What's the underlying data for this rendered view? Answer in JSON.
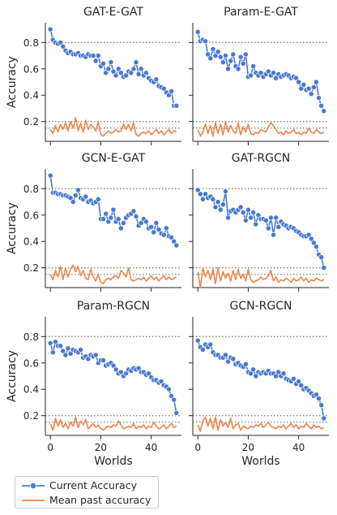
{
  "chart_data": {
    "type": "line",
    "shared_ylabel": "Accuracy",
    "shared_xlabel": "Worlds",
    "xlim": [
      -2,
      52
    ],
    "ylim": [
      0.05,
      0.95
    ],
    "xticks": [
      0,
      20,
      40
    ],
    "yticks": [
      0.2,
      0.4,
      0.6,
      0.8
    ],
    "reference_lines": [
      0.8,
      0.2,
      0.15
    ],
    "grid": false,
    "legend_placement": "bottom-left, below plots",
    "colors": {
      "current": "#4878d0",
      "mean": "#ee854a",
      "reference": "#7f7f7f"
    },
    "legend": [
      "Current Accuracy",
      "Mean past accuracy"
    ],
    "panels": [
      {
        "title": "GAT-E-GAT",
        "current": [
          0.9,
          0.82,
          0.8,
          0.79,
          0.8,
          0.77,
          0.74,
          0.72,
          0.73,
          0.71,
          0.71,
          0.72,
          0.7,
          0.7,
          0.69,
          0.71,
          0.7,
          0.7,
          0.66,
          0.7,
          0.62,
          0.64,
          0.57,
          0.6,
          0.65,
          0.58,
          0.55,
          0.6,
          0.57,
          0.54,
          0.55,
          0.58,
          0.57,
          0.6,
          0.65,
          0.56,
          0.6,
          0.55,
          0.57,
          0.53,
          0.51,
          0.5,
          0.52,
          0.47,
          0.46,
          0.45,
          0.42,
          0.4,
          0.43,
          0.32,
          0.32
        ],
        "mean": [
          0.14,
          0.11,
          0.17,
          0.12,
          0.18,
          0.14,
          0.19,
          0.13,
          0.2,
          0.15,
          0.23,
          0.13,
          0.19,
          0.12,
          0.21,
          0.14,
          0.18,
          0.16,
          0.13,
          0.2,
          0.1,
          0.09,
          0.11,
          0.13,
          0.11,
          0.12,
          0.14,
          0.12,
          0.13,
          0.18,
          0.14,
          0.18,
          0.13,
          0.19,
          0.1,
          0.09,
          0.11,
          0.12,
          0.11,
          0.13,
          0.1,
          0.12,
          0.14,
          0.11,
          0.13,
          0.1,
          0.12,
          0.14,
          0.11,
          0.13,
          0.12
        ]
      },
      {
        "title": "Param-E-GAT",
        "current": [
          0.88,
          0.81,
          0.82,
          0.81,
          0.71,
          0.68,
          0.75,
          0.7,
          0.73,
          0.69,
          0.65,
          0.7,
          0.6,
          0.66,
          0.71,
          0.62,
          0.6,
          0.69,
          0.64,
          0.71,
          0.54,
          0.55,
          0.62,
          0.57,
          0.55,
          0.57,
          0.54,
          0.56,
          0.58,
          0.55,
          0.57,
          0.53,
          0.56,
          0.54,
          0.55,
          0.56,
          0.55,
          0.53,
          0.54,
          0.53,
          0.5,
          0.45,
          0.48,
          0.44,
          0.45,
          0.41,
          0.46,
          0.5,
          0.38,
          0.32,
          0.28
        ],
        "mean": [
          0.14,
          0.09,
          0.12,
          0.18,
          0.11,
          0.17,
          0.09,
          0.19,
          0.11,
          0.18,
          0.1,
          0.2,
          0.12,
          0.17,
          0.13,
          0.11,
          0.19,
          0.1,
          0.16,
          0.12,
          0.18,
          0.11,
          0.1,
          0.12,
          0.11,
          0.14,
          0.13,
          0.12,
          0.16,
          0.19,
          0.17,
          0.14,
          0.11,
          0.12,
          0.1,
          0.13,
          0.11,
          0.12,
          0.14,
          0.11,
          0.12,
          0.1,
          0.12,
          0.11,
          0.15,
          0.12,
          0.11,
          0.14,
          0.12,
          0.11,
          0.12
        ]
      },
      {
        "title": "GCN-E-GAT",
        "current": [
          0.9,
          0.77,
          0.77,
          0.76,
          0.76,
          0.75,
          0.75,
          0.74,
          0.73,
          0.7,
          0.75,
          0.79,
          0.73,
          0.72,
          0.74,
          0.7,
          0.71,
          0.69,
          0.7,
          0.72,
          0.57,
          0.57,
          0.61,
          0.55,
          0.58,
          0.64,
          0.55,
          0.57,
          0.5,
          0.54,
          0.58,
          0.6,
          0.61,
          0.63,
          0.59,
          0.52,
          0.54,
          0.57,
          0.55,
          0.5,
          0.51,
          0.47,
          0.54,
          0.49,
          0.46,
          0.45,
          0.5,
          0.44,
          0.43,
          0.4,
          0.37
        ],
        "mean": [
          0.15,
          0.11,
          0.18,
          0.13,
          0.21,
          0.11,
          0.2,
          0.13,
          0.19,
          0.22,
          0.17,
          0.21,
          0.14,
          0.18,
          0.12,
          0.11,
          0.19,
          0.13,
          0.1,
          0.15,
          0.09,
          0.08,
          0.11,
          0.12,
          0.11,
          0.13,
          0.14,
          0.12,
          0.18,
          0.16,
          0.13,
          0.2,
          0.11,
          0.1,
          0.11,
          0.12,
          0.11,
          0.13,
          0.1,
          0.12,
          0.14,
          0.11,
          0.13,
          0.1,
          0.12,
          0.14,
          0.11,
          0.13,
          0.11,
          0.12,
          0.13
        ]
      },
      {
        "title": "GAT-RGCN",
        "current": [
          0.79,
          0.76,
          0.72,
          0.76,
          0.73,
          0.74,
          0.72,
          0.66,
          0.7,
          0.64,
          0.68,
          0.78,
          0.58,
          0.63,
          0.64,
          0.62,
          0.64,
          0.66,
          0.62,
          0.56,
          0.64,
          0.58,
          0.62,
          0.53,
          0.6,
          0.57,
          0.57,
          0.56,
          0.5,
          0.58,
          0.45,
          0.58,
          0.51,
          0.55,
          0.53,
          0.52,
          0.5,
          0.51,
          0.5,
          0.48,
          0.47,
          0.45,
          0.44,
          0.44,
          0.45,
          0.42,
          0.39,
          0.36,
          0.3,
          0.28,
          0.2
        ],
        "mean": [
          0.17,
          0.05,
          0.2,
          0.13,
          0.18,
          0.11,
          0.19,
          0.08,
          0.2,
          0.1,
          0.17,
          0.12,
          0.16,
          0.1,
          0.18,
          0.11,
          0.19,
          0.12,
          0.15,
          0.1,
          0.19,
          0.11,
          0.09,
          0.1,
          0.11,
          0.13,
          0.11,
          0.12,
          0.14,
          0.18,
          0.1,
          0.13,
          0.09,
          0.11,
          0.1,
          0.12,
          0.11,
          0.09,
          0.12,
          0.1,
          0.11,
          0.13,
          0.1,
          0.12,
          0.09,
          0.11,
          0.1,
          0.12,
          0.11,
          0.1,
          0.11
        ]
      },
      {
        "title": "Param-RGCN",
        "current": [
          0.75,
          0.68,
          0.76,
          0.73,
          0.73,
          0.69,
          0.66,
          0.71,
          0.67,
          0.7,
          0.69,
          0.68,
          0.7,
          0.64,
          0.65,
          0.63,
          0.66,
          0.65,
          0.66,
          0.6,
          0.62,
          0.62,
          0.58,
          0.59,
          0.6,
          0.58,
          0.55,
          0.52,
          0.53,
          0.5,
          0.52,
          0.55,
          0.54,
          0.56,
          0.55,
          0.56,
          0.53,
          0.53,
          0.51,
          0.52,
          0.49,
          0.47,
          0.47,
          0.45,
          0.46,
          0.43,
          0.42,
          0.4,
          0.35,
          0.32,
          0.22
        ],
        "mean": [
          0.14,
          0.09,
          0.18,
          0.12,
          0.17,
          0.11,
          0.14,
          0.1,
          0.15,
          0.12,
          0.19,
          0.11,
          0.16,
          0.13,
          0.17,
          0.1,
          0.12,
          0.14,
          0.11,
          0.13,
          0.1,
          0.09,
          0.11,
          0.12,
          0.11,
          0.13,
          0.12,
          0.16,
          0.13,
          0.1,
          0.11,
          0.12,
          0.11,
          0.14,
          0.1,
          0.12,
          0.11,
          0.13,
          0.1,
          0.12,
          0.11,
          0.15,
          0.12,
          0.1,
          0.11,
          0.13,
          0.1,
          0.12,
          0.14,
          0.11,
          0.12
        ]
      },
      {
        "title": "GCN-RGCN",
        "current": [
          0.77,
          0.72,
          0.7,
          0.74,
          0.72,
          0.74,
          0.68,
          0.66,
          0.66,
          0.64,
          0.64,
          0.66,
          0.61,
          0.64,
          0.63,
          0.59,
          0.6,
          0.58,
          0.57,
          0.59,
          0.53,
          0.52,
          0.55,
          0.5,
          0.53,
          0.52,
          0.53,
          0.52,
          0.54,
          0.52,
          0.52,
          0.5,
          0.53,
          0.5,
          0.52,
          0.48,
          0.47,
          0.46,
          0.48,
          0.44,
          0.46,
          0.43,
          0.4,
          0.41,
          0.39,
          0.37,
          0.35,
          0.36,
          0.33,
          0.28,
          0.18
        ],
        "mean": [
          0.13,
          0.08,
          0.16,
          0.19,
          0.12,
          0.18,
          0.1,
          0.19,
          0.09,
          0.17,
          0.12,
          0.15,
          0.11,
          0.18,
          0.1,
          0.13,
          0.14,
          0.09,
          0.12,
          0.11,
          0.1,
          0.12,
          0.11,
          0.13,
          0.12,
          0.14,
          0.11,
          0.13,
          0.15,
          0.12,
          0.11,
          0.1,
          0.12,
          0.11,
          0.13,
          0.1,
          0.12,
          0.14,
          0.11,
          0.13,
          0.1,
          0.12,
          0.11,
          0.14,
          0.12,
          0.1,
          0.13,
          0.11,
          0.12,
          0.1,
          0.11
        ]
      }
    ]
  }
}
